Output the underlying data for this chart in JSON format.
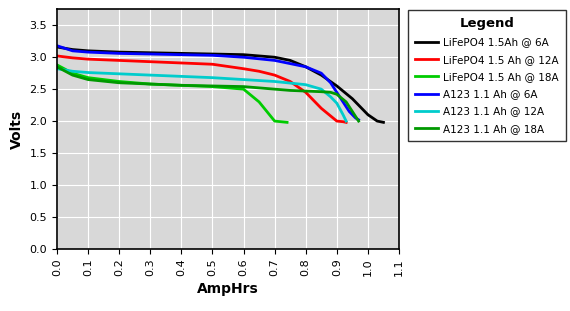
{
  "xlabel": "AmpHrs",
  "ylabel": "Volts",
  "xlim": [
    0.0,
    1.1
  ],
  "ylim": [
    0.0,
    3.75
  ],
  "xticks": [
    0.0,
    0.1,
    0.2,
    0.3,
    0.4,
    0.5,
    0.6,
    0.7,
    0.8,
    0.9,
    1.0,
    1.1
  ],
  "yticks": [
    0.0,
    0.5,
    1.0,
    1.5,
    2.0,
    2.5,
    3.0,
    3.5
  ],
  "fig_bg_color": "#ffffff",
  "plot_bg_color": "#d8d8d8",
  "legend_bg_color": "#ffffff",
  "legend_title": "Legend",
  "series": [
    {
      "label": "LiFePO4 1.5Ah @ 6A",
      "color": "#000000",
      "linewidth": 2.0,
      "x": [
        0.0,
        0.05,
        0.1,
        0.2,
        0.3,
        0.4,
        0.5,
        0.6,
        0.7,
        0.75,
        0.8,
        0.85,
        0.9,
        0.95,
        1.0,
        1.03,
        1.05
      ],
      "y": [
        3.16,
        3.12,
        3.1,
        3.08,
        3.07,
        3.06,
        3.05,
        3.04,
        3.0,
        2.95,
        2.85,
        2.72,
        2.55,
        2.35,
        2.1,
        2.0,
        1.98
      ]
    },
    {
      "label": "LiFePO4 1.5 Ah @ 12A",
      "color": "#ff0000",
      "linewidth": 2.0,
      "x": [
        0.0,
        0.05,
        0.1,
        0.2,
        0.3,
        0.4,
        0.5,
        0.6,
        0.65,
        0.7,
        0.75,
        0.8,
        0.85,
        0.9,
        0.92,
        0.93
      ],
      "y": [
        3.02,
        2.99,
        2.97,
        2.95,
        2.93,
        2.91,
        2.89,
        2.82,
        2.78,
        2.72,
        2.62,
        2.45,
        2.2,
        2.0,
        1.99,
        1.98
      ]
    },
    {
      "label": "LiFePO4 1.5 Ah @ 18A",
      "color": "#00cc00",
      "linewidth": 2.0,
      "x": [
        0.0,
        0.05,
        0.1,
        0.2,
        0.3,
        0.4,
        0.5,
        0.6,
        0.65,
        0.7,
        0.72,
        0.74
      ],
      "y": [
        2.88,
        2.75,
        2.68,
        2.62,
        2.58,
        2.56,
        2.54,
        2.5,
        2.3,
        2.0,
        1.99,
        1.98
      ]
    },
    {
      "label": "A123 1.1 Ah @ 6A",
      "color": "#0000ff",
      "linewidth": 2.0,
      "x": [
        0.0,
        0.05,
        0.1,
        0.2,
        0.3,
        0.4,
        0.5,
        0.6,
        0.7,
        0.8,
        0.85,
        0.88,
        0.9,
        0.92,
        0.94,
        0.96,
        0.97
      ],
      "y": [
        3.18,
        3.1,
        3.08,
        3.06,
        3.05,
        3.04,
        3.03,
        3.0,
        2.95,
        2.85,
        2.75,
        2.6,
        2.45,
        2.3,
        2.15,
        2.05,
        2.02
      ]
    },
    {
      "label": "A123 1.1 Ah @ 12A",
      "color": "#00cccc",
      "linewidth": 2.0,
      "x": [
        0.0,
        0.05,
        0.1,
        0.2,
        0.3,
        0.4,
        0.5,
        0.6,
        0.7,
        0.8,
        0.85,
        0.88,
        0.9,
        0.92,
        0.93
      ],
      "y": [
        2.82,
        2.78,
        2.76,
        2.74,
        2.72,
        2.7,
        2.68,
        2.65,
        2.62,
        2.57,
        2.5,
        2.38,
        2.28,
        2.1,
        2.0
      ]
    },
    {
      "label": "A123 1.1 Ah @ 18A",
      "color": "#009900",
      "linewidth": 2.0,
      "x": [
        0.0,
        0.05,
        0.1,
        0.2,
        0.3,
        0.4,
        0.5,
        0.55,
        0.6,
        0.65,
        0.7,
        0.75,
        0.8,
        0.85,
        0.88,
        0.9,
        0.93,
        0.95,
        0.97
      ],
      "y": [
        2.85,
        2.72,
        2.65,
        2.6,
        2.58,
        2.56,
        2.55,
        2.545,
        2.54,
        2.52,
        2.5,
        2.48,
        2.47,
        2.46,
        2.45,
        2.42,
        2.3,
        2.15,
        2.0
      ]
    }
  ]
}
